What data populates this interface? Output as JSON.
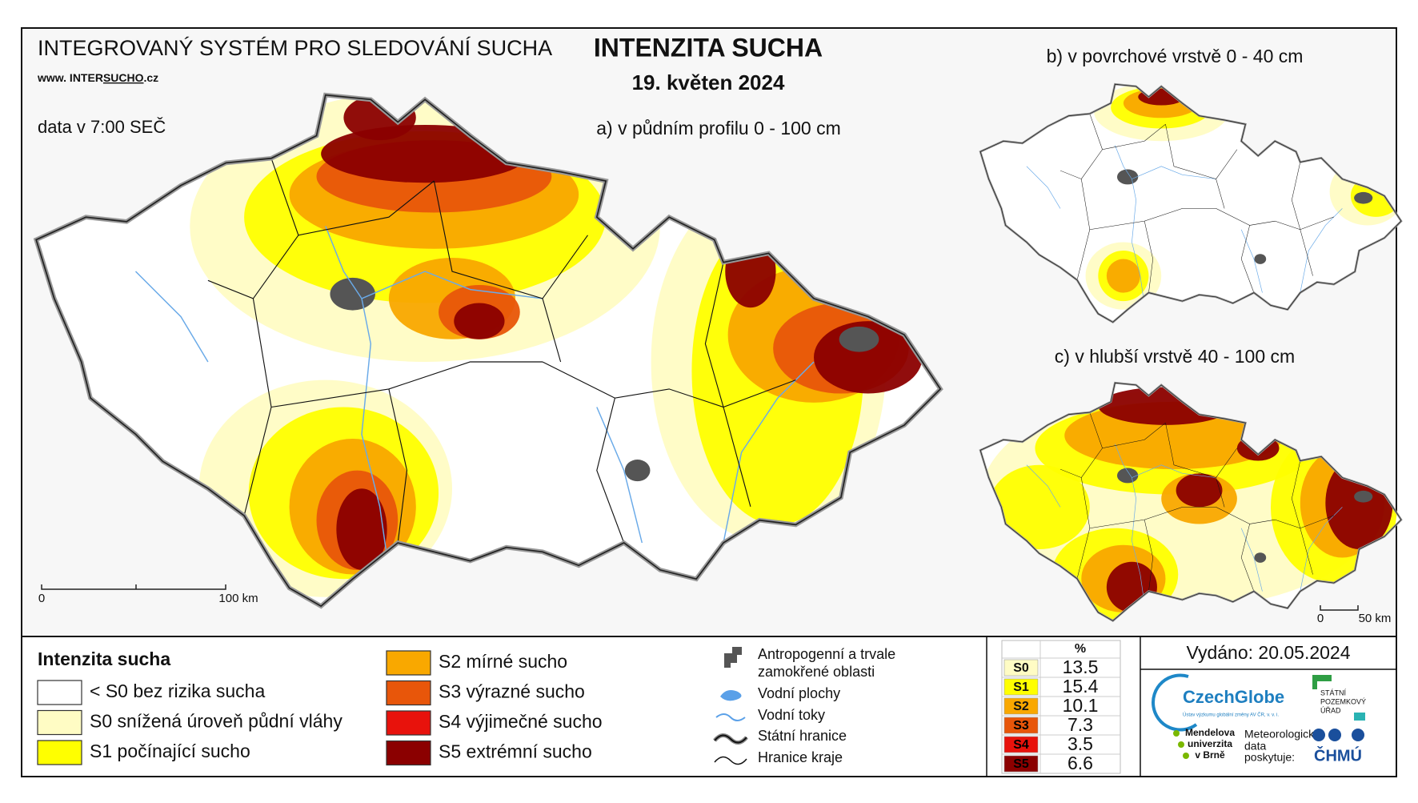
{
  "header": {
    "system": "INTEGROVANÝ SYSTÉM PRO SLEDOVÁNÍ SUCHA",
    "web_prefix": "www. INTER",
    "web_highlight": "SUCHO",
    "web_suffix": ".cz",
    "data_time": "data v 7:00 SEČ",
    "title": "INTENZITA SUCHA",
    "date": "19. květen 2024"
  },
  "maps": [
    {
      "label": "a) v půdním profilu 0 - 100 cm",
      "scale": [
        "0",
        "100 km"
      ]
    },
    {
      "label": "b) v povrchové vrstvě 0 - 40 cm"
    },
    {
      "label": "c) v hlubší vrstvě 40 - 100 cm",
      "scale": [
        "0",
        "50 km"
      ]
    }
  ],
  "legend": {
    "title": "Intenzita sucha",
    "classes": [
      {
        "label": "< S0 bez rizika sucha",
        "color": "#ffffff"
      },
      {
        "label": "S0 snížená úroveň půdní vláhy",
        "color": "#fffcc4"
      },
      {
        "label": "S1 počínající sucho",
        "color": "#ffff00"
      },
      {
        "label": "S2 mírné sucho",
        "color": "#f9a800"
      },
      {
        "label": "S3 výrazné sucho",
        "color": "#e8560a"
      },
      {
        "label": "S4 výjimečné sucho",
        "color": "#e8120c"
      },
      {
        "label": "S5 extrémní sucho",
        "color": "#8b0000"
      }
    ],
    "layers": [
      [
        "Antropogenní a trvale",
        "zamokřené oblasti"
      ],
      [
        "Vodní plochy"
      ],
      [
        "Vodní toky"
      ],
      [
        "Státní hranice"
      ],
      [
        "Hranice kraje"
      ]
    ]
  },
  "table": {
    "header": "%",
    "rows": [
      {
        "class": "S0",
        "value": 13.5
      },
      {
        "class": "S1",
        "value": 15.4
      },
      {
        "class": "S2",
        "value": 10.1
      },
      {
        "class": "S3",
        "value": 7.3
      },
      {
        "class": "S4",
        "value": 3.5
      },
      {
        "class": "S5",
        "value": 6.6
      }
    ]
  },
  "footer": {
    "issued": "Vydáno: 20.05.2024",
    "czechglobe": "CzechGlobe",
    "czechglobe_sub": "Ústav výzkumu globální změny AV ČR, v. v. i.",
    "spu": [
      "STÁTNÍ",
      "POZEMKOVÝ",
      "ÚŘAD"
    ],
    "mendel": [
      "Mendelova",
      "univerzita",
      "v Brně"
    ],
    "meteo": [
      "Meteorologická",
      "data",
      "poskytuje:"
    ],
    "chmu": "ČHMÚ"
  }
}
